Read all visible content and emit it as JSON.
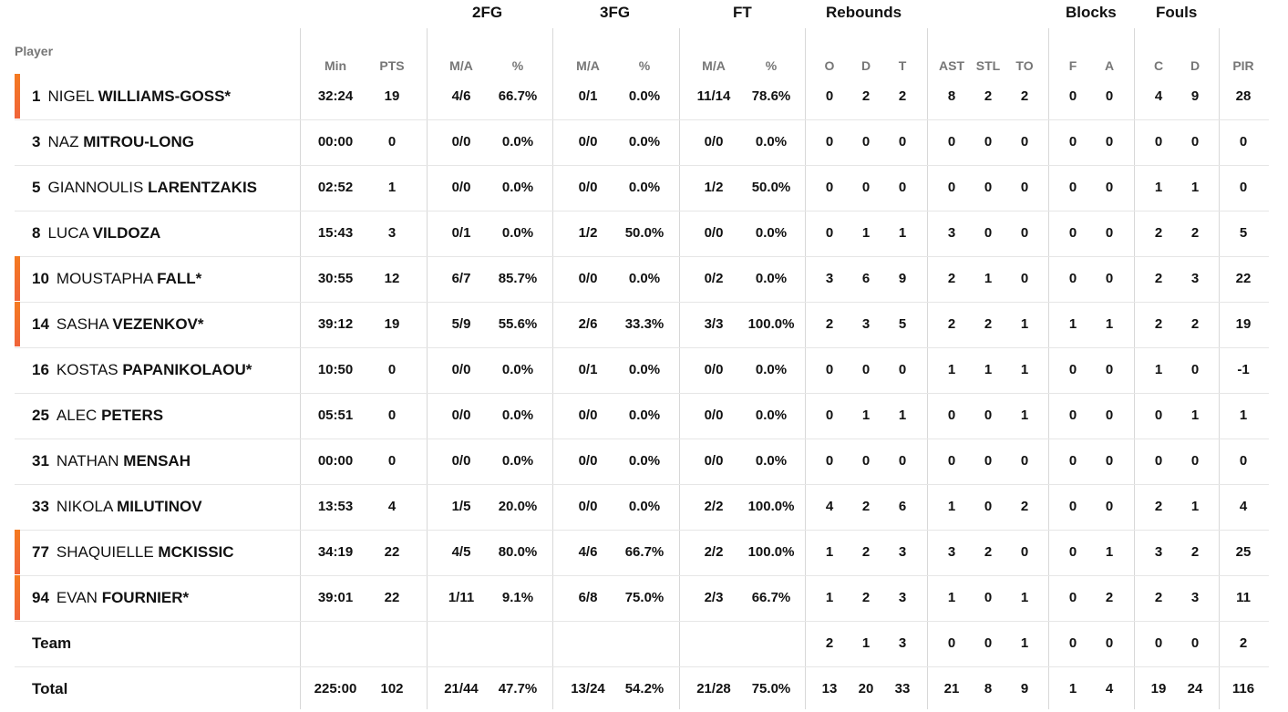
{
  "headers": {
    "player": "Player",
    "groups": {
      "fg2": "2FG",
      "fg3": "3FG",
      "ft": "FT",
      "rebounds": "Rebounds",
      "blocks": "Blocks",
      "fouls": "Fouls"
    },
    "columns": {
      "min": "Min",
      "pts": "PTS",
      "fg2_ma": "M/A",
      "fg2_pct": "%",
      "fg3_ma": "M/A",
      "fg3_pct": "%",
      "ft_ma": "M/A",
      "ft_pct": "%",
      "reb_o": "O",
      "reb_d": "D",
      "reb_t": "T",
      "ast": "AST",
      "stl": "STL",
      "to": "TO",
      "blk_f": "F",
      "blk_a": "A",
      "foul_c": "C",
      "foul_d": "D",
      "pir": "PIR"
    }
  },
  "rows": [
    {
      "num": "1",
      "first": "NIGEL",
      "last": "WILLIAMS-GOSS*",
      "starter": true,
      "min": "32:24",
      "pts": "19",
      "fg2_ma": "4/6",
      "fg2_pct": "66.7%",
      "fg3_ma": "0/1",
      "fg3_pct": "0.0%",
      "ft_ma": "11/14",
      "ft_pct": "78.6%",
      "reb_o": "0",
      "reb_d": "2",
      "reb_t": "2",
      "ast": "8",
      "stl": "2",
      "to": "2",
      "blk_f": "0",
      "blk_a": "0",
      "foul_c": "4",
      "foul_d": "9",
      "pir": "28"
    },
    {
      "num": "3",
      "first": "NAZ",
      "last": "MITROU-LONG",
      "starter": false,
      "min": "00:00",
      "pts": "0",
      "fg2_ma": "0/0",
      "fg2_pct": "0.0%",
      "fg3_ma": "0/0",
      "fg3_pct": "0.0%",
      "ft_ma": "0/0",
      "ft_pct": "0.0%",
      "reb_o": "0",
      "reb_d": "0",
      "reb_t": "0",
      "ast": "0",
      "stl": "0",
      "to": "0",
      "blk_f": "0",
      "blk_a": "0",
      "foul_c": "0",
      "foul_d": "0",
      "pir": "0"
    },
    {
      "num": "5",
      "first": "GIANNOULIS",
      "last": "LARENTZAKIS",
      "starter": false,
      "min": "02:52",
      "pts": "1",
      "fg2_ma": "0/0",
      "fg2_pct": "0.0%",
      "fg3_ma": "0/0",
      "fg3_pct": "0.0%",
      "ft_ma": "1/2",
      "ft_pct": "50.0%",
      "reb_o": "0",
      "reb_d": "0",
      "reb_t": "0",
      "ast": "0",
      "stl": "0",
      "to": "0",
      "blk_f": "0",
      "blk_a": "0",
      "foul_c": "1",
      "foul_d": "1",
      "pir": "0"
    },
    {
      "num": "8",
      "first": "LUCA",
      "last": "VILDOZA",
      "starter": false,
      "min": "15:43",
      "pts": "3",
      "fg2_ma": "0/1",
      "fg2_pct": "0.0%",
      "fg3_ma": "1/2",
      "fg3_pct": "50.0%",
      "ft_ma": "0/0",
      "ft_pct": "0.0%",
      "reb_o": "0",
      "reb_d": "1",
      "reb_t": "1",
      "ast": "3",
      "stl": "0",
      "to": "0",
      "blk_f": "0",
      "blk_a": "0",
      "foul_c": "2",
      "foul_d": "2",
      "pir": "5"
    },
    {
      "num": "10",
      "first": "MOUSTAPHA",
      "last": "FALL*",
      "starter": true,
      "min": "30:55",
      "pts": "12",
      "fg2_ma": "6/7",
      "fg2_pct": "85.7%",
      "fg3_ma": "0/0",
      "fg3_pct": "0.0%",
      "ft_ma": "0/2",
      "ft_pct": "0.0%",
      "reb_o": "3",
      "reb_d": "6",
      "reb_t": "9",
      "ast": "2",
      "stl": "1",
      "to": "0",
      "blk_f": "0",
      "blk_a": "0",
      "foul_c": "2",
      "foul_d": "3",
      "pir": "22"
    },
    {
      "num": "14",
      "first": "SASHA",
      "last": "VEZENKOV*",
      "starter": true,
      "min": "39:12",
      "pts": "19",
      "fg2_ma": "5/9",
      "fg2_pct": "55.6%",
      "fg3_ma": "2/6",
      "fg3_pct": "33.3%",
      "ft_ma": "3/3",
      "ft_pct": "100.0%",
      "reb_o": "2",
      "reb_d": "3",
      "reb_t": "5",
      "ast": "2",
      "stl": "2",
      "to": "1",
      "blk_f": "1",
      "blk_a": "1",
      "foul_c": "2",
      "foul_d": "2",
      "pir": "19"
    },
    {
      "num": "16",
      "first": "KOSTAS",
      "last": "PAPANIKOLAOU*",
      "starter": false,
      "min": "10:50",
      "pts": "0",
      "fg2_ma": "0/0",
      "fg2_pct": "0.0%",
      "fg3_ma": "0/1",
      "fg3_pct": "0.0%",
      "ft_ma": "0/0",
      "ft_pct": "0.0%",
      "reb_o": "0",
      "reb_d": "0",
      "reb_t": "0",
      "ast": "1",
      "stl": "1",
      "to": "1",
      "blk_f": "0",
      "blk_a": "0",
      "foul_c": "1",
      "foul_d": "0",
      "pir": "-1"
    },
    {
      "num": "25",
      "first": "ALEC",
      "last": "PETERS",
      "starter": false,
      "min": "05:51",
      "pts": "0",
      "fg2_ma": "0/0",
      "fg2_pct": "0.0%",
      "fg3_ma": "0/0",
      "fg3_pct": "0.0%",
      "ft_ma": "0/0",
      "ft_pct": "0.0%",
      "reb_o": "0",
      "reb_d": "1",
      "reb_t": "1",
      "ast": "0",
      "stl": "0",
      "to": "1",
      "blk_f": "0",
      "blk_a": "0",
      "foul_c": "0",
      "foul_d": "1",
      "pir": "1"
    },
    {
      "num": "31",
      "first": "NATHAN",
      "last": "MENSAH",
      "starter": false,
      "min": "00:00",
      "pts": "0",
      "fg2_ma": "0/0",
      "fg2_pct": "0.0%",
      "fg3_ma": "0/0",
      "fg3_pct": "0.0%",
      "ft_ma": "0/0",
      "ft_pct": "0.0%",
      "reb_o": "0",
      "reb_d": "0",
      "reb_t": "0",
      "ast": "0",
      "stl": "0",
      "to": "0",
      "blk_f": "0",
      "blk_a": "0",
      "foul_c": "0",
      "foul_d": "0",
      "pir": "0"
    },
    {
      "num": "33",
      "first": "NIKOLA",
      "last": "MILUTINOV",
      "starter": false,
      "min": "13:53",
      "pts": "4",
      "fg2_ma": "1/5",
      "fg2_pct": "20.0%",
      "fg3_ma": "0/0",
      "fg3_pct": "0.0%",
      "ft_ma": "2/2",
      "ft_pct": "100.0%",
      "reb_o": "4",
      "reb_d": "2",
      "reb_t": "6",
      "ast": "1",
      "stl": "0",
      "to": "2",
      "blk_f": "0",
      "blk_a": "0",
      "foul_c": "2",
      "foul_d": "1",
      "pir": "4"
    },
    {
      "num": "77",
      "first": "SHAQUIELLE",
      "last": "MCKISSIC",
      "starter": true,
      "min": "34:19",
      "pts": "22",
      "fg2_ma": "4/5",
      "fg2_pct": "80.0%",
      "fg3_ma": "4/6",
      "fg3_pct": "66.7%",
      "ft_ma": "2/2",
      "ft_pct": "100.0%",
      "reb_o": "1",
      "reb_d": "2",
      "reb_t": "3",
      "ast": "3",
      "stl": "2",
      "to": "0",
      "blk_f": "0",
      "blk_a": "1",
      "foul_c": "3",
      "foul_d": "2",
      "pir": "25"
    },
    {
      "num": "94",
      "first": "EVAN",
      "last": "FOURNIER*",
      "starter": true,
      "min": "39:01",
      "pts": "22",
      "fg2_ma": "1/11",
      "fg2_pct": "9.1%",
      "fg3_ma": "6/8",
      "fg3_pct": "75.0%",
      "ft_ma": "2/3",
      "ft_pct": "66.7%",
      "reb_o": "1",
      "reb_d": "2",
      "reb_t": "3",
      "ast": "1",
      "stl": "0",
      "to": "1",
      "blk_f": "0",
      "blk_a": "2",
      "foul_c": "2",
      "foul_d": "3",
      "pir": "11"
    }
  ],
  "team": {
    "label": "Team",
    "min": "",
    "pts": "",
    "fg2_ma": "",
    "fg2_pct": "",
    "fg3_ma": "",
    "fg3_pct": "",
    "ft_ma": "",
    "ft_pct": "",
    "reb_o": "2",
    "reb_d": "1",
    "reb_t": "3",
    "ast": "0",
    "stl": "0",
    "to": "1",
    "blk_f": "0",
    "blk_a": "0",
    "foul_c": "0",
    "foul_d": "0",
    "pir": "2"
  },
  "total": {
    "label": "Total",
    "min": "225:00",
    "pts": "102",
    "fg2_ma": "21/44",
    "fg2_pct": "47.7%",
    "fg3_ma": "13/24",
    "fg3_pct": "54.2%",
    "ft_ma": "21/28",
    "ft_pct": "75.0%",
    "reb_o": "13",
    "reb_d": "20",
    "reb_t": "33",
    "ast": "21",
    "stl": "8",
    "to": "9",
    "blk_f": "1",
    "blk_a": "4",
    "foul_c": "19",
    "foul_d": "24",
    "pir": "116"
  },
  "accent_color": "#f47a20"
}
